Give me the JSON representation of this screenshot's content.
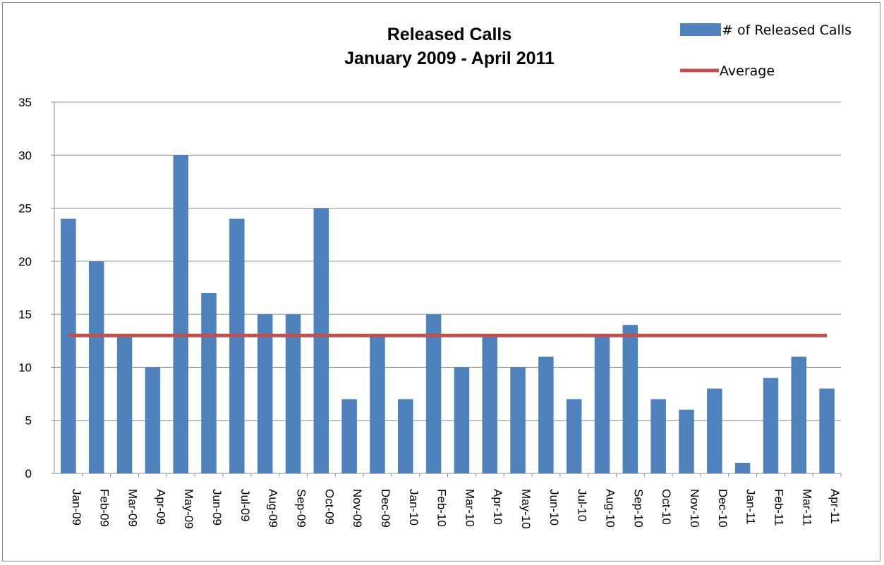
{
  "chart_data": {
    "type": "bar",
    "title": "Released Calls",
    "subtitle": "January 2009 - April 2011",
    "xlabel": "",
    "ylabel": "",
    "ylim": [
      0,
      35
    ],
    "yticks": [
      0,
      5,
      10,
      15,
      20,
      25,
      30,
      35
    ],
    "grid": true,
    "legend_position": "top-right",
    "categories": [
      "Jan-09",
      "Feb-09",
      "Mar-09",
      "Apr-09",
      "May-09",
      "Jun-09",
      "Jul-09",
      "Aug-09",
      "Sep-09",
      "Oct-09",
      "Nov-09",
      "Dec-09",
      "Jan-10",
      "Feb-10",
      "Mar-10",
      "Apr-10",
      "May-10",
      "Jun-10",
      "Jul-10",
      "Aug-10",
      "Sep-10",
      "Oct-10",
      "Nov-10",
      "Dec-10",
      "Jan-11",
      "Feb-11",
      "Mar-11",
      "Apr-11"
    ],
    "series": [
      {
        "name": "# of Released Calls",
        "type": "bar",
        "color": "#4f81bd",
        "values": [
          24,
          20,
          13,
          10,
          30,
          17,
          24,
          15,
          15,
          25,
          7,
          13,
          7,
          15,
          10,
          13,
          10,
          11,
          7,
          13,
          14,
          7,
          6,
          8,
          1,
          9,
          11,
          8
        ]
      },
      {
        "name": "Average",
        "type": "line",
        "color": "#c0504d",
        "values": [
          13,
          13,
          13,
          13,
          13,
          13,
          13,
          13,
          13,
          13,
          13,
          13,
          13,
          13,
          13,
          13,
          13,
          13,
          13,
          13,
          13,
          13,
          13,
          13,
          13,
          13,
          13,
          13
        ]
      }
    ]
  }
}
